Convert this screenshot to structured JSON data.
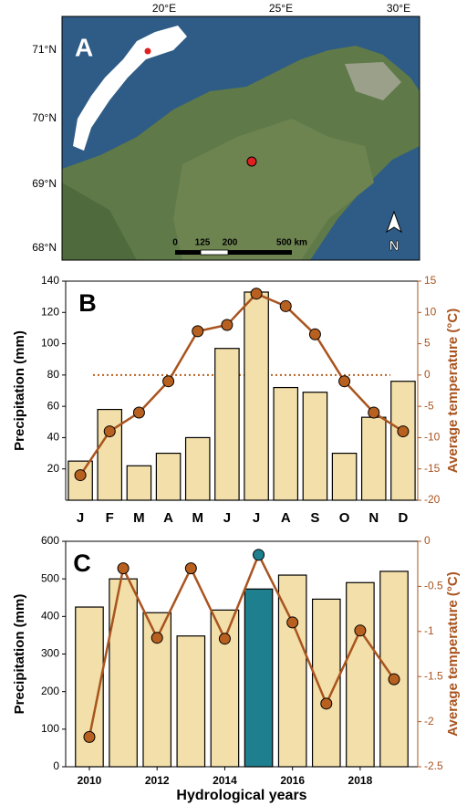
{
  "map": {
    "panel_label": "A",
    "lat_labels": [
      "71°N",
      "70°N",
      "69°N",
      "68°N"
    ],
    "lon_labels": [
      "20°E",
      "25°E",
      "30°E"
    ],
    "scale_labels": [
      "0",
      "125",
      "200",
      "500 km"
    ],
    "north": "N"
  },
  "chart_data": [
    {
      "type": "bar",
      "panel_label": "B",
      "ylabel": "Precipitation (mm)",
      "y2label": "Average temperature (°C)",
      "categories": [
        "J",
        "F",
        "M",
        "A",
        "M",
        "J",
        "J",
        "A",
        "S",
        "O",
        "N",
        "D"
      ],
      "series": [
        {
          "type": "bar",
          "color": "#f3dfa9",
          "values": [
            25,
            58,
            22,
            30,
            40,
            97,
            133,
            72,
            69,
            30,
            53,
            76
          ]
        },
        {
          "type": "line",
          "axis": "y2",
          "color": "#a9541f",
          "marker_color": "#b8601f",
          "values": [
            -16,
            -9,
            -6,
            -1,
            7,
            8,
            13,
            11,
            6.5,
            -1,
            -6,
            -9
          ]
        }
      ],
      "ylim": [
        0,
        140
      ],
      "yticks": [
        20,
        40,
        60,
        80,
        100,
        120,
        140
      ],
      "y2lim": [
        -20,
        15
      ],
      "y2ticks": [
        -20,
        -15,
        -10,
        -5,
        0,
        5,
        10,
        15
      ],
      "hline": {
        "value": 0,
        "axis": "y2",
        "color": "#b8601f"
      }
    },
    {
      "type": "bar",
      "panel_label": "C",
      "ylabel": "Precipitation (mm)",
      "y2label": "Average temperature (°C)",
      "xlabel": "Hydrological years",
      "x": [
        2010,
        2011,
        2012,
        2013,
        2014,
        2015,
        2016,
        2017,
        2018,
        2019
      ],
      "series": [
        {
          "type": "bar",
          "colors": [
            "#f3dfa9",
            "#f3dfa9",
            "#f3dfa9",
            "#f3dfa9",
            "#f3dfa9",
            "#1e7f8e",
            "#f3dfa9",
            "#f3dfa9",
            "#f3dfa9",
            "#f3dfa9"
          ],
          "values": [
            425,
            500,
            410,
            348,
            417,
            473,
            510,
            446,
            490,
            520
          ]
        },
        {
          "type": "line",
          "axis": "y2",
          "color": "#a9541f",
          "marker_colors": [
            "#b8601f",
            "#b8601f",
            "#b8601f",
            "#b8601f",
            "#b8601f",
            "#1e7f8e",
            "#b8601f",
            "#b8601f",
            "#b8601f",
            "#b8601f"
          ],
          "values": [
            -2.17,
            -0.3,
            -1.07,
            -0.3,
            -1.08,
            -0.15,
            -0.9,
            -1.8,
            -0.99,
            -1.53
          ]
        }
      ],
      "xlim": [
        2009.3,
        2019.7
      ],
      "xticks": [
        2010,
        2012,
        2014,
        2016,
        2018
      ],
      "ylim": [
        0,
        600
      ],
      "yticks": [
        0,
        100,
        200,
        300,
        400,
        500,
        600
      ],
      "y2lim": [
        -2.5,
        0
      ],
      "y2ticks": [
        -2.5,
        -2,
        -1.5,
        -1,
        -0.5,
        0
      ]
    }
  ]
}
